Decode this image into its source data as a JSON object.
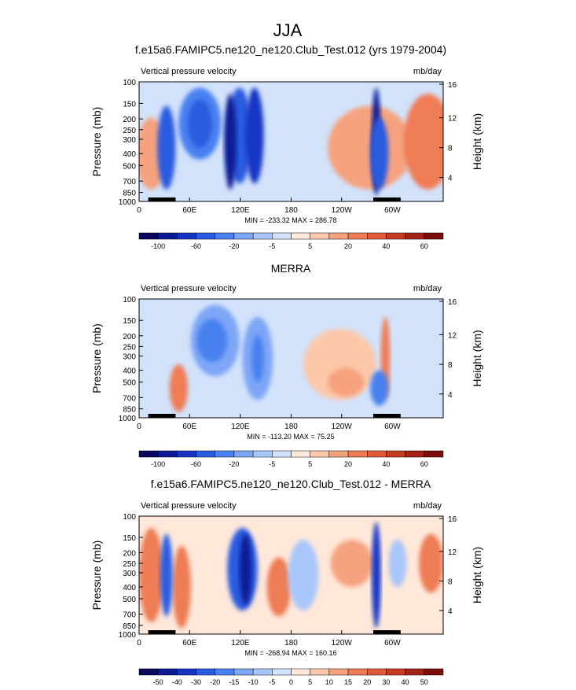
{
  "figure": {
    "title": "JJA"
  },
  "chart_data": [
    {
      "type": "heatmap",
      "title": "f.e15a6.FAMIPC5.ne120_ne120.Club_Test.012 (yrs 1979-2004)",
      "left_label": "Vertical pressure velocity",
      "right_label": "mb/day",
      "ylabel": "Pressure (mb)",
      "ylabel_right": "Height (km)",
      "x_ticks": [
        "0",
        "60E",
        "120E",
        "180",
        "120W",
        "60W"
      ],
      "y_ticks": [
        "100",
        "150",
        "200",
        "250",
        "300",
        "400",
        "500",
        "700",
        "850",
        "1000"
      ],
      "y2_ticks": [
        "16",
        "12",
        "8",
        "4"
      ],
      "stats": "MIN = -233.32  MAX = 286.78",
      "colorbar_labels": [
        "-100",
        "-60",
        "-20",
        "-5",
        "5",
        "20",
        "40",
        "60"
      ]
    },
    {
      "type": "heatmap",
      "title": "MERRA",
      "left_label": "Vertical pressure velocity",
      "right_label": "mb/day",
      "ylabel": "Pressure (mb)",
      "ylabel_right": "Height (km)",
      "x_ticks": [
        "0",
        "60E",
        "120E",
        "180",
        "120W",
        "60W"
      ],
      "y_ticks": [
        "100",
        "150",
        "200",
        "250",
        "300",
        "400",
        "500",
        "700",
        "850",
        "1000"
      ],
      "y2_ticks": [
        "16",
        "12",
        "8",
        "4"
      ],
      "stats": "MIN = -113.20  MAX =  75.25",
      "colorbar_labels": [
        "-100",
        "-60",
        "-20",
        "-5",
        "5",
        "20",
        "40",
        "60"
      ]
    },
    {
      "type": "heatmap",
      "title": "f.e15a6.FAMIPC5.ne120_ne120.Club_Test.012 - MERRA",
      "left_label": "Vertical pressure velocity",
      "right_label": "mb/day",
      "ylabel": "Pressure (mb)",
      "ylabel_right": "Height (km)",
      "x_ticks": [
        "0",
        "60E",
        "120E",
        "180",
        "120W",
        "60W"
      ],
      "y_ticks": [
        "100",
        "150",
        "200",
        "250",
        "300",
        "400",
        "500",
        "700",
        "850",
        "1000"
      ],
      "y2_ticks": [
        "16",
        "12",
        "8",
        "4"
      ],
      "stats": "MIN = -268.94  MAX = 160.16",
      "colorbar_labels": [
        "-50",
        "-40",
        "-30",
        "-20",
        "-15",
        "-10",
        "-5",
        "0",
        "5",
        "10",
        "15",
        "20",
        "30",
        "40",
        "50"
      ]
    }
  ],
  "colors": {
    "scale_9": [
      "#08085e",
      "#0c1a96",
      "#1734c4",
      "#2a5be0",
      "#4a80f0",
      "#7da6f6",
      "#a9c6fa",
      "#d2e2fb",
      "#ffe8da",
      "#fcc8aa",
      "#f6a27e",
      "#ee7b55",
      "#e05a38",
      "#c53b22",
      "#a22215",
      "#7a0d0b"
    ],
    "scale_diff": [
      "#08085e",
      "#0c1a96",
      "#1734c4",
      "#2a5be0",
      "#4a80f0",
      "#7da6f6",
      "#a9c6fa",
      "#d2e2fb",
      "#ffe8da",
      "#fcc8aa",
      "#f6a27e",
      "#ee7b55",
      "#e05a38",
      "#c53b22",
      "#a22215",
      "#7a0d0b"
    ]
  }
}
